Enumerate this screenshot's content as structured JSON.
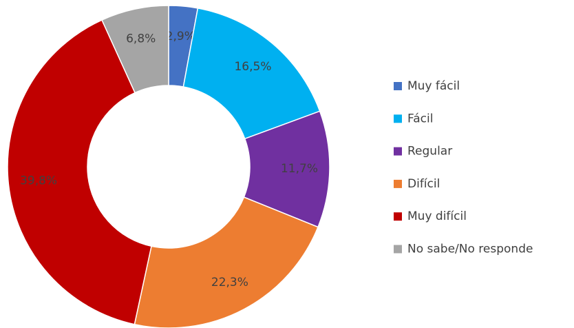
{
  "chart_data": {
    "type": "donut",
    "categories": [
      "Muy fácil",
      "Fácil",
      "Regular",
      "Difícil",
      "Muy difícil",
      "No sabe/No responde"
    ],
    "values": [
      2.9,
      16.5,
      11.7,
      22.3,
      39.8,
      6.8
    ],
    "value_labels": [
      "2,9%",
      "16,5%",
      "11,7%",
      "22,3%",
      "39,8%",
      "6,8%"
    ],
    "colors": [
      "#4472c4",
      "#00b0f0",
      "#7030a0",
      "#ed7d31",
      "#c00000",
      "#a5a5a5"
    ],
    "legend": "right"
  }
}
